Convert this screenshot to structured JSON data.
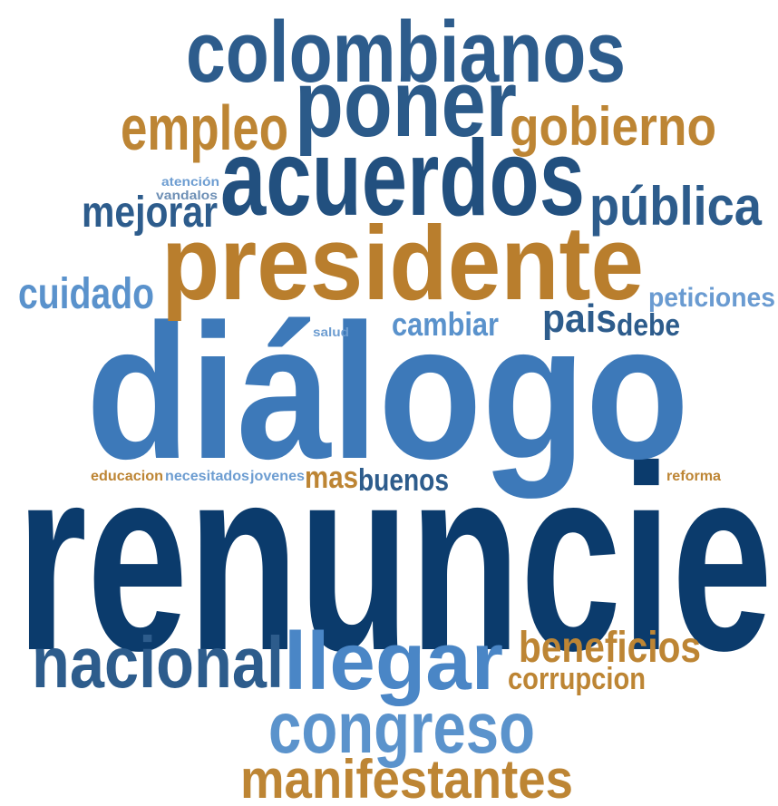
{
  "words": [
    {
      "text": "renuncie",
      "color": "#0b3b6c"
    },
    {
      "text": "diálogo",
      "color": "#3d79b9"
    },
    {
      "text": "presidente",
      "color": "#b97e2d"
    },
    {
      "text": "acuerdos",
      "color": "#22507f"
    },
    {
      "text": "poner",
      "color": "#2b5a89"
    },
    {
      "text": "colombianos",
      "color": "#2d5c8c"
    },
    {
      "text": "empleo",
      "color": "#bd8534"
    },
    {
      "text": "gobierno",
      "color": "#bd8534"
    },
    {
      "text": "pública",
      "color": "#2d5c8c"
    },
    {
      "text": "mejorar",
      "color": "#2d5c8c"
    },
    {
      "text": "atención",
      "color": "#6d9dd1"
    },
    {
      "text": "vandalos",
      "color": "#6d8fb5"
    },
    {
      "text": "cuidado",
      "color": "#5a92cc"
    },
    {
      "text": "peticiones",
      "color": "#6a9bd1"
    },
    {
      "text": "cambiar",
      "color": "#5a92cc"
    },
    {
      "text": "salud",
      "color": "#6d9dd1"
    },
    {
      "text": "pais",
      "color": "#2d5c8c"
    },
    {
      "text": "debe",
      "color": "#2d5c8c"
    },
    {
      "text": "educacion",
      "color": "#bd8534"
    },
    {
      "text": "necesitados",
      "color": "#6d9dd1"
    },
    {
      "text": "jovenes",
      "color": "#6d9dd1"
    },
    {
      "text": "mas",
      "color": "#bd8534"
    },
    {
      "text": "buenos",
      "color": "#2d5c8c"
    },
    {
      "text": "reforma",
      "color": "#bd8534"
    },
    {
      "text": "nacional",
      "color": "#2d5c8c"
    },
    {
      "text": "llegar",
      "color": "#4a86c6"
    },
    {
      "text": "beneficios",
      "color": "#bd8534"
    },
    {
      "text": "corrupcion",
      "color": "#bd8534"
    },
    {
      "text": "congreso",
      "color": "#5b93cc"
    },
    {
      "text": "manifestantes",
      "color": "#bd8534"
    }
  ]
}
